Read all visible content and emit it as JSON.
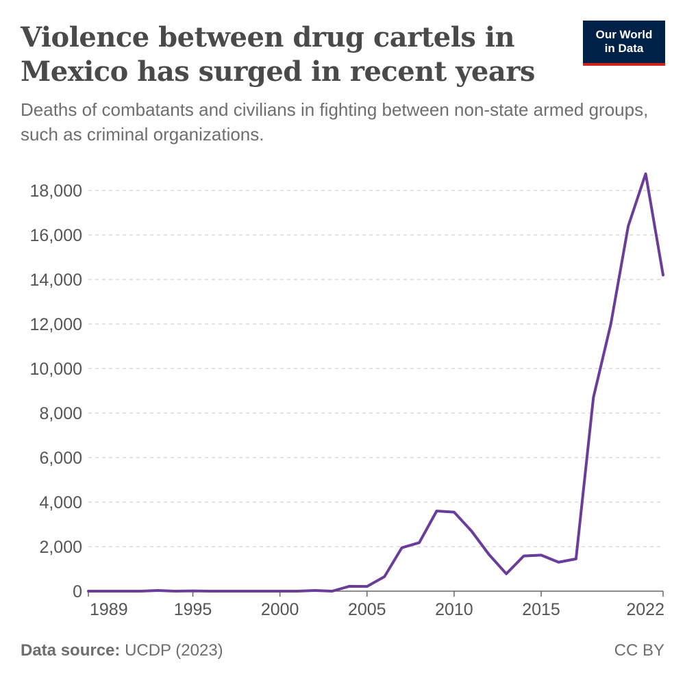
{
  "header": {
    "title": "Violence between drug cartels in Mexico has surged in recent years",
    "subtitle": "Deaths of combatants and civilians in fighting between non-state armed groups, such as criminal organizations."
  },
  "logo": {
    "line1": "Our World",
    "line2": "in Data"
  },
  "footer": {
    "source_label": "Data source:",
    "source_value": "UCDP (2023)",
    "license": "CC BY"
  },
  "colors": {
    "line": "#6a3d9a",
    "grid": "#d9d9d9",
    "axis": "#666666",
    "text": "#555555",
    "logo_bg": "#002147",
    "logo_accent": "#ce261e"
  },
  "chart_data": {
    "type": "line",
    "title": "Violence between drug cartels in Mexico has surged in recent years",
    "subtitle": "Deaths of combatants and civilians in fighting between non-state armed groups, such as criminal organizations.",
    "xlabel": "",
    "ylabel": "",
    "xlim": [
      1989,
      2022
    ],
    "ylim": [
      0,
      18000
    ],
    "grid": "horizontal-dashed",
    "x_ticks": [
      1989,
      1995,
      2000,
      2005,
      2010,
      2015,
      2022
    ],
    "y_ticks": [
      0,
      2000,
      4000,
      6000,
      8000,
      10000,
      12000,
      14000,
      16000,
      18000
    ],
    "y_tick_labels": [
      "0",
      "2,000",
      "4,000",
      "6,000",
      "8,000",
      "10,000",
      "12,000",
      "14,000",
      "16,000",
      "18,000"
    ],
    "series": [
      {
        "x": [
          1989,
          1990,
          1991,
          1992,
          1993,
          1994,
          1995,
          1996,
          1997,
          1998,
          1999,
          2000,
          2001,
          2002,
          2003,
          2004,
          2005,
          2006,
          2007,
          2008,
          2009,
          2010,
          2011,
          2012,
          2013,
          2014,
          2015,
          2016,
          2017,
          2018,
          2019,
          2020,
          2021,
          2022
        ],
        "values": [
          0,
          0,
          0,
          0,
          30,
          0,
          10,
          0,
          0,
          0,
          0,
          0,
          0,
          30,
          0,
          220,
          210,
          650,
          1950,
          2180,
          3600,
          3550,
          2700,
          1650,
          780,
          1580,
          1620,
          1300,
          1450,
          8700,
          12000,
          16400,
          18750,
          14200
        ]
      }
    ]
  }
}
